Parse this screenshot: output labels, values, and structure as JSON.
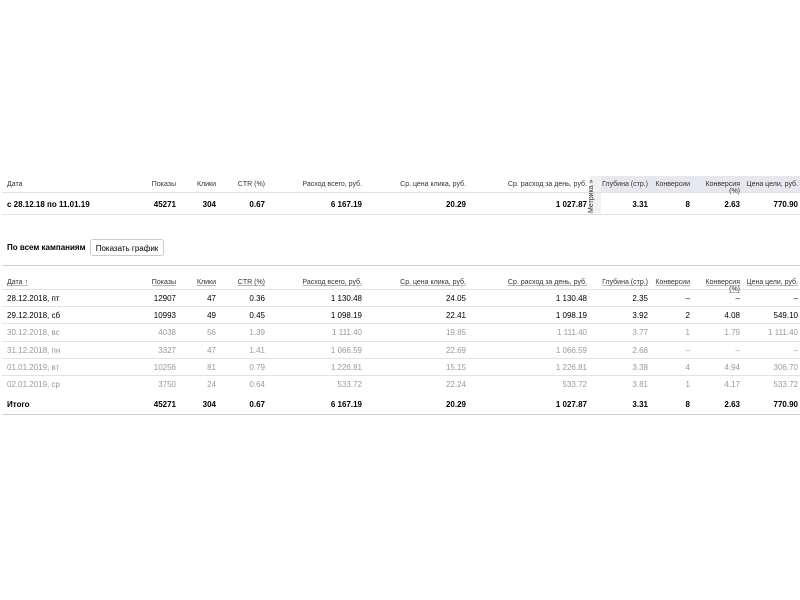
{
  "summary": {
    "headers": [
      "Дата",
      "Показы",
      "Клики",
      "CTR (%)",
      "Расход всего, руб.",
      "Ср. цена клика, руб.",
      "Ср. расход за день, руб.",
      "Глубина (стр.)",
      "Конверсии",
      "Конверсия (%)",
      "Цена цели, руб."
    ],
    "row": [
      "с 28.12.18 по 11.01.19",
      "45271",
      "304",
      "0.67",
      "6 167.19",
      "20.29",
      "1 027.87",
      "3.31",
      "8",
      "2.63",
      "770.90"
    ],
    "metrika_label": "Метрика »"
  },
  "section": {
    "title": "По всем кампаниям",
    "button": "Показать график"
  },
  "table": {
    "headers": [
      "Дата ↑",
      "Показы",
      "Клики",
      "CTR (%)",
      "Расход всего, руб.",
      "Ср. цена клика, руб.",
      "Ср. расход за день, руб.",
      "Глубина (стр.)",
      "Конверсии",
      "Конверсия (%)",
      "Цена цели, руб."
    ],
    "rows": [
      [
        "28.12.2018, пт",
        "12907",
        "47",
        "0.36",
        "1 130.48",
        "24.05",
        "1 130.48",
        "2.35",
        "–",
        "–",
        "–"
      ],
      [
        "29.12.2018, сб",
        "10993",
        "49",
        "0.45",
        "1 098.19",
        "22.41",
        "1 098.19",
        "3.92",
        "2",
        "4.08",
        "549.10"
      ],
      [
        "30.12.2018, вс",
        "4038",
        "56",
        "1.39",
        "1 111.40",
        "19.85",
        "1 111.40",
        "3.77",
        "1",
        "1.79",
        "1 111.40"
      ],
      [
        "31.12.2018, пн",
        "3327",
        "47",
        "1.41",
        "1 066.59",
        "22.69",
        "1 066.59",
        "2.68",
        "–",
        "–",
        "–"
      ],
      [
        "01.01.2019, вт",
        "10256",
        "81",
        "0.79",
        "1 226.81",
        "15.15",
        "1 226.81",
        "3.38",
        "4",
        "4.94",
        "306.70"
      ],
      [
        "02.01.2019, ср",
        "3750",
        "24",
        "0.64",
        "533.72",
        "22.24",
        "533.72",
        "3.81",
        "1",
        "4.17",
        "533.72"
      ]
    ],
    "total": [
      "Итого",
      "45271",
      "304",
      "0.67",
      "6 167.19",
      "20.29",
      "1 027.87",
      "3.31",
      "8",
      "2.63",
      "770.90"
    ]
  }
}
